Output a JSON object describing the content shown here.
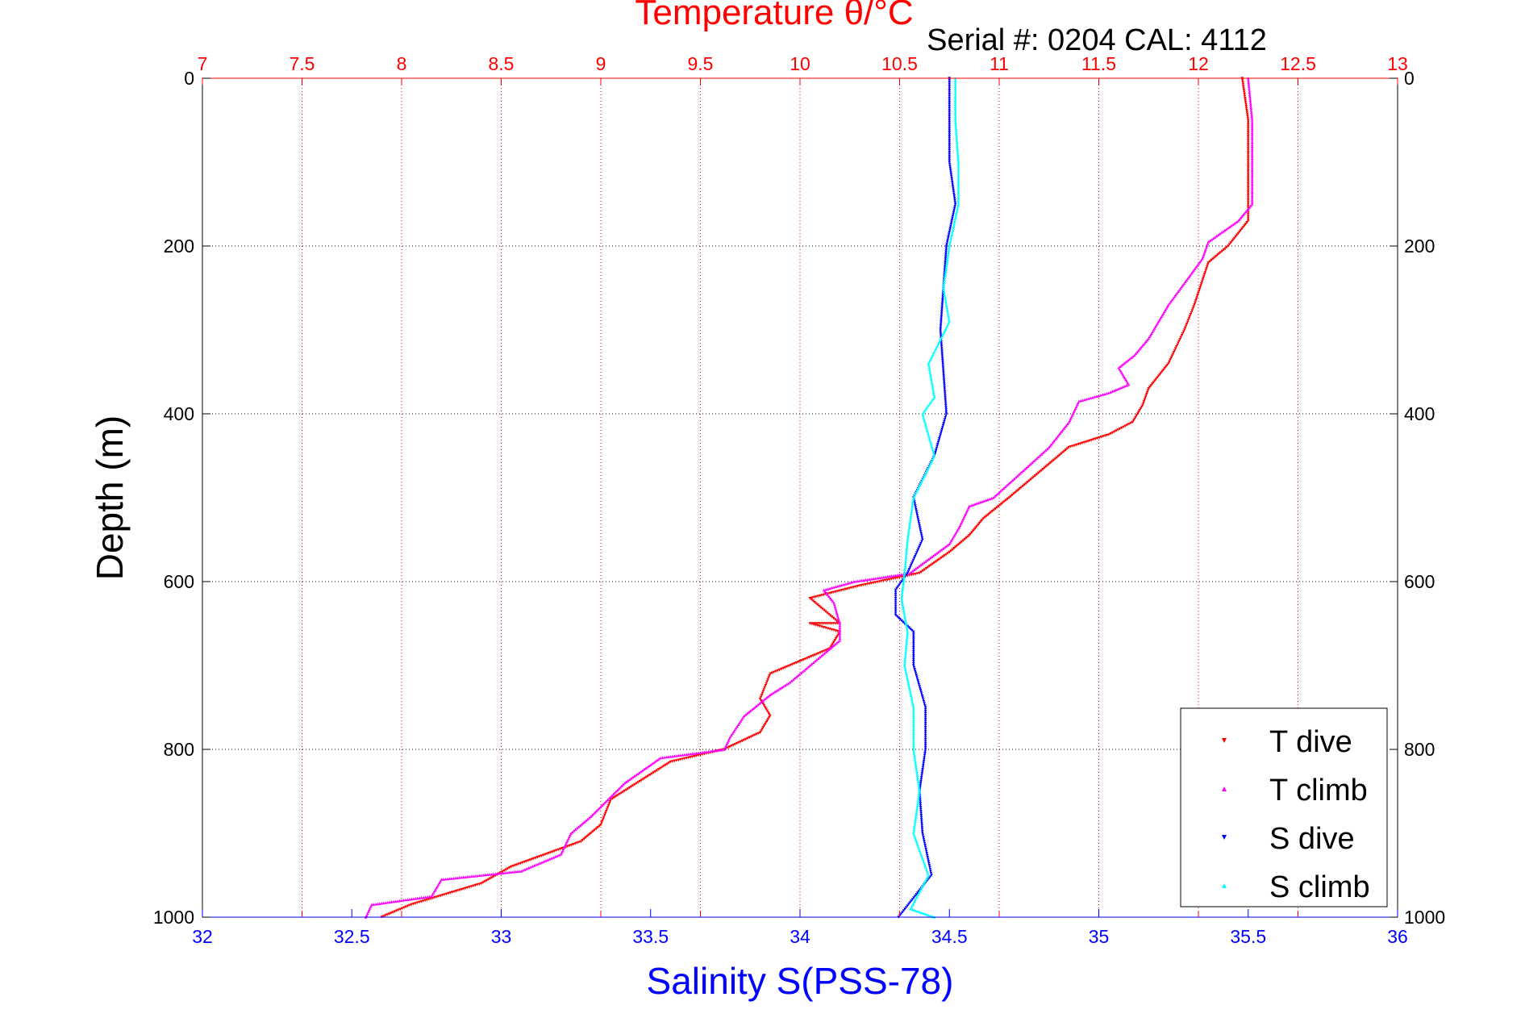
{
  "chart_data": {
    "type": "scatter",
    "title": "Temperature θ/°C",
    "subtitle": "Serial #: 0204  CAL: 4112",
    "xlabel": "Salinity S(PSS-78)",
    "ylabel": "Depth (m)",
    "top_axis": {
      "label": "Temperature θ/°C",
      "range": [
        7,
        13
      ],
      "ticks": [
        "7",
        "7.5",
        "8",
        "8.5",
        "9",
        "9.5",
        "10",
        "10.5",
        "11",
        "11.5",
        "12",
        "12.5",
        "13"
      ],
      "color": "#ff0000"
    },
    "bottom_axis": {
      "label": "Salinity S(PSS-78)",
      "range": [
        32,
        36
      ],
      "ticks": [
        "32",
        "32.5",
        "33",
        "33.5",
        "34",
        "34.5",
        "35",
        "35.5",
        "36"
      ],
      "color": "#0000ff"
    },
    "y_axis": {
      "label": "Depth (m)",
      "range": [
        0,
        1000
      ],
      "reversed": true,
      "ticks": [
        "0",
        "200",
        "400",
        "600",
        "800",
        "1000"
      ]
    },
    "grid": true,
    "legend_position": "bottom-right",
    "series": [
      {
        "name": "T dive",
        "axis": "top",
        "color": "#ff0000",
        "marker": "triangle-down",
        "points": [
          [
            12.22,
            0
          ],
          [
            12.25,
            50
          ],
          [
            12.25,
            100
          ],
          [
            12.25,
            140
          ],
          [
            12.25,
            170
          ],
          [
            12.15,
            200
          ],
          [
            12.05,
            220
          ],
          [
            11.98,
            270
          ],
          [
            11.93,
            300
          ],
          [
            11.85,
            340
          ],
          [
            11.75,
            370
          ],
          [
            11.72,
            390
          ],
          [
            11.67,
            410
          ],
          [
            11.55,
            425
          ],
          [
            11.35,
            440
          ],
          [
            11.05,
            500
          ],
          [
            10.92,
            525
          ],
          [
            10.85,
            545
          ],
          [
            10.75,
            565
          ],
          [
            10.6,
            590
          ],
          [
            10.3,
            605
          ],
          [
            10.05,
            620
          ],
          [
            10.2,
            650
          ],
          [
            10.05,
            650
          ],
          [
            10.2,
            660
          ],
          [
            10.15,
            680
          ],
          [
            9.85,
            710
          ],
          [
            9.8,
            740
          ],
          [
            9.85,
            760
          ],
          [
            9.8,
            780
          ],
          [
            9.62,
            800
          ],
          [
            9.35,
            815
          ],
          [
            9.05,
            860
          ],
          [
            9.0,
            890
          ],
          [
            8.9,
            910
          ],
          [
            8.55,
            940
          ],
          [
            8.4,
            960
          ],
          [
            8.05,
            985
          ],
          [
            7.9,
            1000
          ]
        ]
      },
      {
        "name": "T climb",
        "axis": "top",
        "color": "#ff00ff",
        "marker": "triangle-up",
        "points": [
          [
            12.25,
            0
          ],
          [
            12.27,
            50
          ],
          [
            12.27,
            100
          ],
          [
            12.27,
            150
          ],
          [
            12.2,
            170
          ],
          [
            12.05,
            195
          ],
          [
            12.02,
            215
          ],
          [
            11.85,
            270
          ],
          [
            11.8,
            290
          ],
          [
            11.75,
            310
          ],
          [
            11.68,
            330
          ],
          [
            11.6,
            345
          ],
          [
            11.65,
            365
          ],
          [
            11.55,
            375
          ],
          [
            11.4,
            385
          ],
          [
            11.35,
            410
          ],
          [
            11.25,
            440
          ],
          [
            10.97,
            500
          ],
          [
            10.85,
            510
          ],
          [
            10.8,
            535
          ],
          [
            10.75,
            555
          ],
          [
            10.55,
            590
          ],
          [
            10.27,
            600
          ],
          [
            10.12,
            610
          ],
          [
            10.17,
            625
          ],
          [
            10.2,
            650
          ],
          [
            10.2,
            670
          ],
          [
            10.1,
            690
          ],
          [
            9.95,
            720
          ],
          [
            9.85,
            735
          ],
          [
            9.72,
            760
          ],
          [
            9.65,
            785
          ],
          [
            9.62,
            800
          ],
          [
            9.3,
            810
          ],
          [
            9.12,
            840
          ],
          [
            8.95,
            880
          ],
          [
            8.85,
            900
          ],
          [
            8.8,
            925
          ],
          [
            8.6,
            945
          ],
          [
            8.2,
            955
          ],
          [
            8.15,
            975
          ],
          [
            7.85,
            985
          ],
          [
            7.82,
            1000
          ]
        ]
      },
      {
        "name": "S dive",
        "axis": "bottom",
        "color": "#0000ff",
        "marker": "triangle-down",
        "points": [
          [
            34.5,
            0
          ],
          [
            34.5,
            50
          ],
          [
            34.5,
            100
          ],
          [
            34.52,
            150
          ],
          [
            34.49,
            200
          ],
          [
            34.48,
            250
          ],
          [
            34.47,
            300
          ],
          [
            34.48,
            350
          ],
          [
            34.49,
            400
          ],
          [
            34.45,
            450
          ],
          [
            34.38,
            500
          ],
          [
            34.41,
            550
          ],
          [
            34.36,
            590
          ],
          [
            34.32,
            610
          ],
          [
            34.32,
            640
          ],
          [
            34.38,
            660
          ],
          [
            34.38,
            700
          ],
          [
            34.42,
            750
          ],
          [
            34.42,
            800
          ],
          [
            34.4,
            850
          ],
          [
            34.41,
            900
          ],
          [
            34.44,
            950
          ],
          [
            34.33,
            1000
          ]
        ]
      },
      {
        "name": "S climb",
        "axis": "bottom",
        "color": "#00ffff",
        "marker": "triangle-up",
        "points": [
          [
            34.52,
            0
          ],
          [
            34.52,
            50
          ],
          [
            34.53,
            100
          ],
          [
            34.53,
            150
          ],
          [
            34.5,
            200
          ],
          [
            34.48,
            250
          ],
          [
            34.5,
            290
          ],
          [
            34.43,
            340
          ],
          [
            34.45,
            380
          ],
          [
            34.41,
            400
          ],
          [
            34.45,
            450
          ],
          [
            34.38,
            500
          ],
          [
            34.36,
            550
          ],
          [
            34.35,
            590
          ],
          [
            34.34,
            620
          ],
          [
            34.36,
            660
          ],
          [
            34.35,
            700
          ],
          [
            34.38,
            750
          ],
          [
            34.38,
            800
          ],
          [
            34.4,
            850
          ],
          [
            34.38,
            900
          ],
          [
            34.43,
            950
          ],
          [
            34.37,
            990
          ],
          [
            34.45,
            1000
          ]
        ]
      }
    ]
  }
}
